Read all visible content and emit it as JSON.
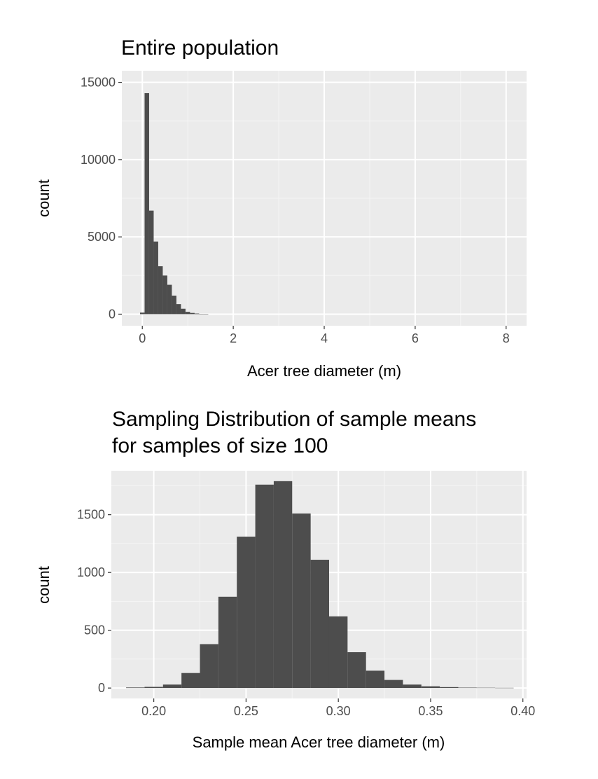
{
  "chart_data": [
    {
      "type": "bar",
      "title": "Entire population",
      "xlabel": "Acer tree diameter (m)",
      "ylabel": "count",
      "xlim": [
        -0.45,
        8.45
      ],
      "ylim": [
        -750,
        15750
      ],
      "x_ticks": [
        0,
        2,
        4,
        6,
        8
      ],
      "x_tick_labels": [
        "0",
        "2",
        "4",
        "6",
        "8"
      ],
      "y_ticks": [
        0,
        5000,
        10000,
        15000
      ],
      "y_tick_labels": [
        "0",
        "5000",
        "10000",
        "15000"
      ],
      "bin_width": 0.1,
      "bins": [
        {
          "x": 0.0,
          "count": 100
        },
        {
          "x": 0.1,
          "count": 14300
        },
        {
          "x": 0.2,
          "count": 6700
        },
        {
          "x": 0.3,
          "count": 4700
        },
        {
          "x": 0.4,
          "count": 3100
        },
        {
          "x": 0.5,
          "count": 2500
        },
        {
          "x": 0.6,
          "count": 1900
        },
        {
          "x": 0.7,
          "count": 1200
        },
        {
          "x": 0.8,
          "count": 650
        },
        {
          "x": 0.9,
          "count": 350
        },
        {
          "x": 1.0,
          "count": 150
        },
        {
          "x": 1.1,
          "count": 80
        },
        {
          "x": 1.2,
          "count": 40
        },
        {
          "x": 1.3,
          "count": 20
        },
        {
          "x": 1.4,
          "count": 10
        }
      ],
      "fill_color": "#4d4d4d",
      "panel_color": "#ebebeb",
      "grid": true
    },
    {
      "type": "bar",
      "title": "Sampling Distribution of sample means",
      "subtitle": "for samples of size 100",
      "xlabel": "Sample mean Acer tree diameter (m)",
      "ylabel": "count",
      "xlim": [
        0.177,
        0.402
      ],
      "ylim": [
        -90,
        1880
      ],
      "x_ticks": [
        0.2,
        0.25,
        0.3,
        0.35,
        0.4
      ],
      "x_tick_labels": [
        "0.20",
        "0.25",
        "0.30",
        "0.35",
        "0.40"
      ],
      "y_ticks": [
        0,
        500,
        1000,
        1500
      ],
      "y_tick_labels": [
        "0",
        "500",
        "1000",
        "1500"
      ],
      "bin_width": 0.01,
      "bins": [
        {
          "x": 0.19,
          "count": 5
        },
        {
          "x": 0.2,
          "count": 10
        },
        {
          "x": 0.21,
          "count": 30
        },
        {
          "x": 0.22,
          "count": 130
        },
        {
          "x": 0.23,
          "count": 380
        },
        {
          "x": 0.24,
          "count": 790
        },
        {
          "x": 0.25,
          "count": 1310
        },
        {
          "x": 0.26,
          "count": 1760
        },
        {
          "x": 0.27,
          "count": 1790
        },
        {
          "x": 0.28,
          "count": 1510
        },
        {
          "x": 0.29,
          "count": 1110
        },
        {
          "x": 0.3,
          "count": 620
        },
        {
          "x": 0.31,
          "count": 310
        },
        {
          "x": 0.32,
          "count": 150
        },
        {
          "x": 0.33,
          "count": 70
        },
        {
          "x": 0.34,
          "count": 30
        },
        {
          "x": 0.35,
          "count": 15
        },
        {
          "x": 0.36,
          "count": 8
        },
        {
          "x": 0.37,
          "count": 4
        },
        {
          "x": 0.38,
          "count": 3
        },
        {
          "x": 0.39,
          "count": 2
        }
      ],
      "fill_color": "#4d4d4d",
      "panel_color": "#ebebeb",
      "grid": true
    }
  ]
}
